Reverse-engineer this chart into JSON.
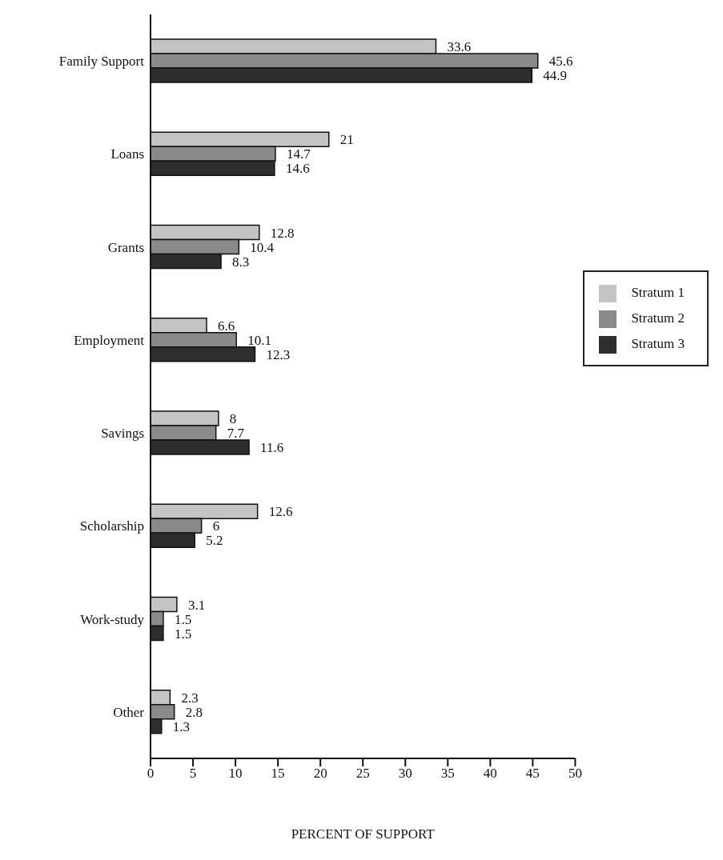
{
  "chart_data": {
    "type": "bar",
    "orientation": "horizontal",
    "xlabel": "PERCENT OF SUPPORT",
    "categories": [
      "Family Support",
      "Loans",
      "Grants",
      "Employment",
      "Savings",
      "Scholarship",
      "Work-study",
      "Other"
    ],
    "series": [
      {
        "name": "Stratum 1",
        "color": "#c4c4c4",
        "values": [
          33.6,
          21,
          12.8,
          6.6,
          8,
          12.6,
          3.1,
          2.3
        ]
      },
      {
        "name": "Stratum 2",
        "color": "#8a8a8a",
        "values": [
          45.6,
          14.7,
          10.4,
          10.1,
          7.7,
          6,
          1.5,
          2.8
        ]
      },
      {
        "name": "Stratum 3",
        "color": "#2e2e2e",
        "values": [
          44.9,
          14.6,
          8.3,
          12.3,
          11.6,
          5.2,
          1.5,
          1.3
        ]
      }
    ],
    "xlim": [
      0,
      50
    ],
    "xticks": [
      0,
      5,
      10,
      15,
      20,
      25,
      30,
      35,
      40,
      45,
      50
    ],
    "grid": false,
    "legend": "right",
    "data_labels": true
  }
}
